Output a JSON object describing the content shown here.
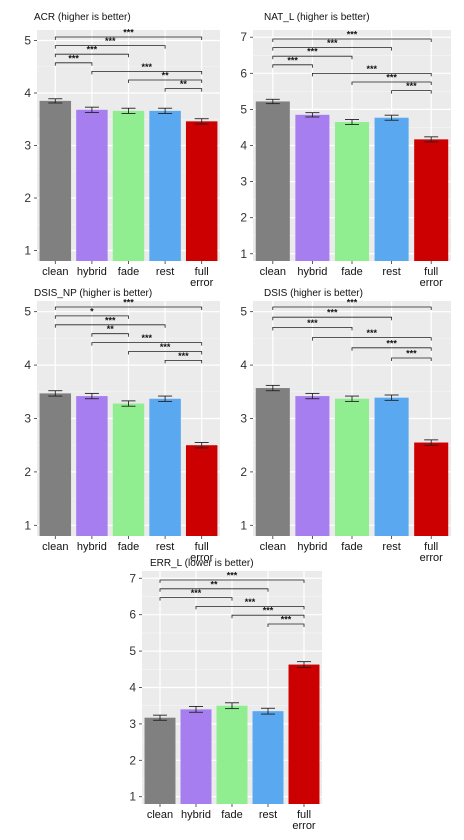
{
  "colors": {
    "clean": "#808080",
    "hybrid": "#a77ef0",
    "fade": "#90ee90",
    "rest": "#5aa9f0",
    "full error": "#cc0000"
  },
  "chart_data": [
    {
      "type": "bar",
      "title": "ACR (higher is better)",
      "categories": [
        "clean",
        "hybrid",
        "fade",
        "rest",
        "full error"
      ],
      "values": [
        3.85,
        3.68,
        3.66,
        3.66,
        3.46
      ],
      "errors": [
        0.04,
        0.05,
        0.05,
        0.05,
        0.05
      ],
      "ylim": [
        0.8,
        5.2
      ],
      "yticks": [
        1,
        2,
        3,
        4,
        5
      ],
      "grid": true,
      "significance": [
        {
          "from": "clean",
          "to": "full error",
          "label": "***"
        },
        {
          "from": "clean",
          "to": "rest",
          "label": "***"
        },
        {
          "from": "clean",
          "to": "fade",
          "label": "***"
        },
        {
          "from": "clean",
          "to": "hybrid",
          "label": "***"
        },
        {
          "from": "hybrid",
          "to": "full error",
          "label": "***"
        },
        {
          "from": "fade",
          "to": "full error",
          "label": "**"
        },
        {
          "from": "rest",
          "to": "full error",
          "label": "**"
        }
      ]
    },
    {
      "type": "bar",
      "title": "NAT_L (higher is better)",
      "categories": [
        "clean",
        "hybrid",
        "fade",
        "rest",
        "full error"
      ],
      "values": [
        5.22,
        4.85,
        4.65,
        4.77,
        4.17
      ],
      "errors": [
        0.06,
        0.06,
        0.07,
        0.07,
        0.07
      ],
      "ylim": [
        0.8,
        7.2
      ],
      "yticks": [
        1,
        2,
        3,
        4,
        5,
        6,
        7
      ],
      "grid": true,
      "significance": [
        {
          "from": "clean",
          "to": "full error",
          "label": "***"
        },
        {
          "from": "clean",
          "to": "rest",
          "label": "***"
        },
        {
          "from": "clean",
          "to": "fade",
          "label": "***"
        },
        {
          "from": "clean",
          "to": "hybrid",
          "label": "***"
        },
        {
          "from": "hybrid",
          "to": "full error",
          "label": "***"
        },
        {
          "from": "fade",
          "to": "full error",
          "label": "***"
        },
        {
          "from": "rest",
          "to": "full error",
          "label": "***"
        }
      ]
    },
    {
      "type": "bar",
      "title": "DSIS_NP (higher is better)",
      "categories": [
        "clean",
        "hybrid",
        "fade",
        "rest",
        "full error"
      ],
      "values": [
        3.47,
        3.42,
        3.28,
        3.37,
        2.5
      ],
      "errors": [
        0.05,
        0.05,
        0.05,
        0.05,
        0.05
      ],
      "ylim": [
        0.8,
        5.2
      ],
      "yticks": [
        1,
        2,
        3,
        4,
        5
      ],
      "grid": true,
      "significance": [
        {
          "from": "clean",
          "to": "full error",
          "label": "***"
        },
        {
          "from": "clean",
          "to": "fade",
          "label": "*"
        },
        {
          "from": "clean",
          "to": "rest",
          "label": "***"
        },
        {
          "from": "hybrid",
          "to": "fade",
          "label": "**"
        },
        {
          "from": "hybrid",
          "to": "full error",
          "label": "***"
        },
        {
          "from": "fade",
          "to": "full error",
          "label": "***"
        },
        {
          "from": "rest",
          "to": "full error",
          "label": "***"
        }
      ]
    },
    {
      "type": "bar",
      "title": "DSIS (higher is better)",
      "categories": [
        "clean",
        "hybrid",
        "fade",
        "rest",
        "full error"
      ],
      "values": [
        3.57,
        3.42,
        3.37,
        3.39,
        2.55
      ],
      "errors": [
        0.05,
        0.05,
        0.05,
        0.05,
        0.05
      ],
      "ylim": [
        0.8,
        5.2
      ],
      "yticks": [
        1,
        2,
        3,
        4,
        5
      ],
      "grid": true,
      "significance": [
        {
          "from": "clean",
          "to": "full error",
          "label": "***"
        },
        {
          "from": "clean",
          "to": "rest",
          "label": "***"
        },
        {
          "from": "clean",
          "to": "fade",
          "label": "***"
        },
        {
          "from": "hybrid",
          "to": "full error",
          "label": "***"
        },
        {
          "from": "fade",
          "to": "full error",
          "label": "***"
        },
        {
          "from": "rest",
          "to": "full error",
          "label": "***"
        }
      ]
    },
    {
      "type": "bar",
      "title": "ERR_L (lower is better)",
      "categories": [
        "clean",
        "hybrid",
        "fade",
        "rest",
        "full error"
      ],
      "values": [
        3.17,
        3.4,
        3.5,
        3.35,
        4.63
      ],
      "errors": [
        0.07,
        0.08,
        0.08,
        0.08,
        0.08
      ],
      "ylim": [
        0.8,
        7.2
      ],
      "yticks": [
        1,
        2,
        3,
        4,
        5,
        6,
        7
      ],
      "grid": true,
      "significance": [
        {
          "from": "clean",
          "to": "full error",
          "label": "***"
        },
        {
          "from": "clean",
          "to": "rest",
          "label": "**"
        },
        {
          "from": "clean",
          "to": "fade",
          "label": "***"
        },
        {
          "from": "hybrid",
          "to": "full error",
          "label": "***"
        },
        {
          "from": "fade",
          "to": "full error",
          "label": "***"
        },
        {
          "from": "rest",
          "to": "full error",
          "label": "***"
        }
      ]
    }
  ]
}
